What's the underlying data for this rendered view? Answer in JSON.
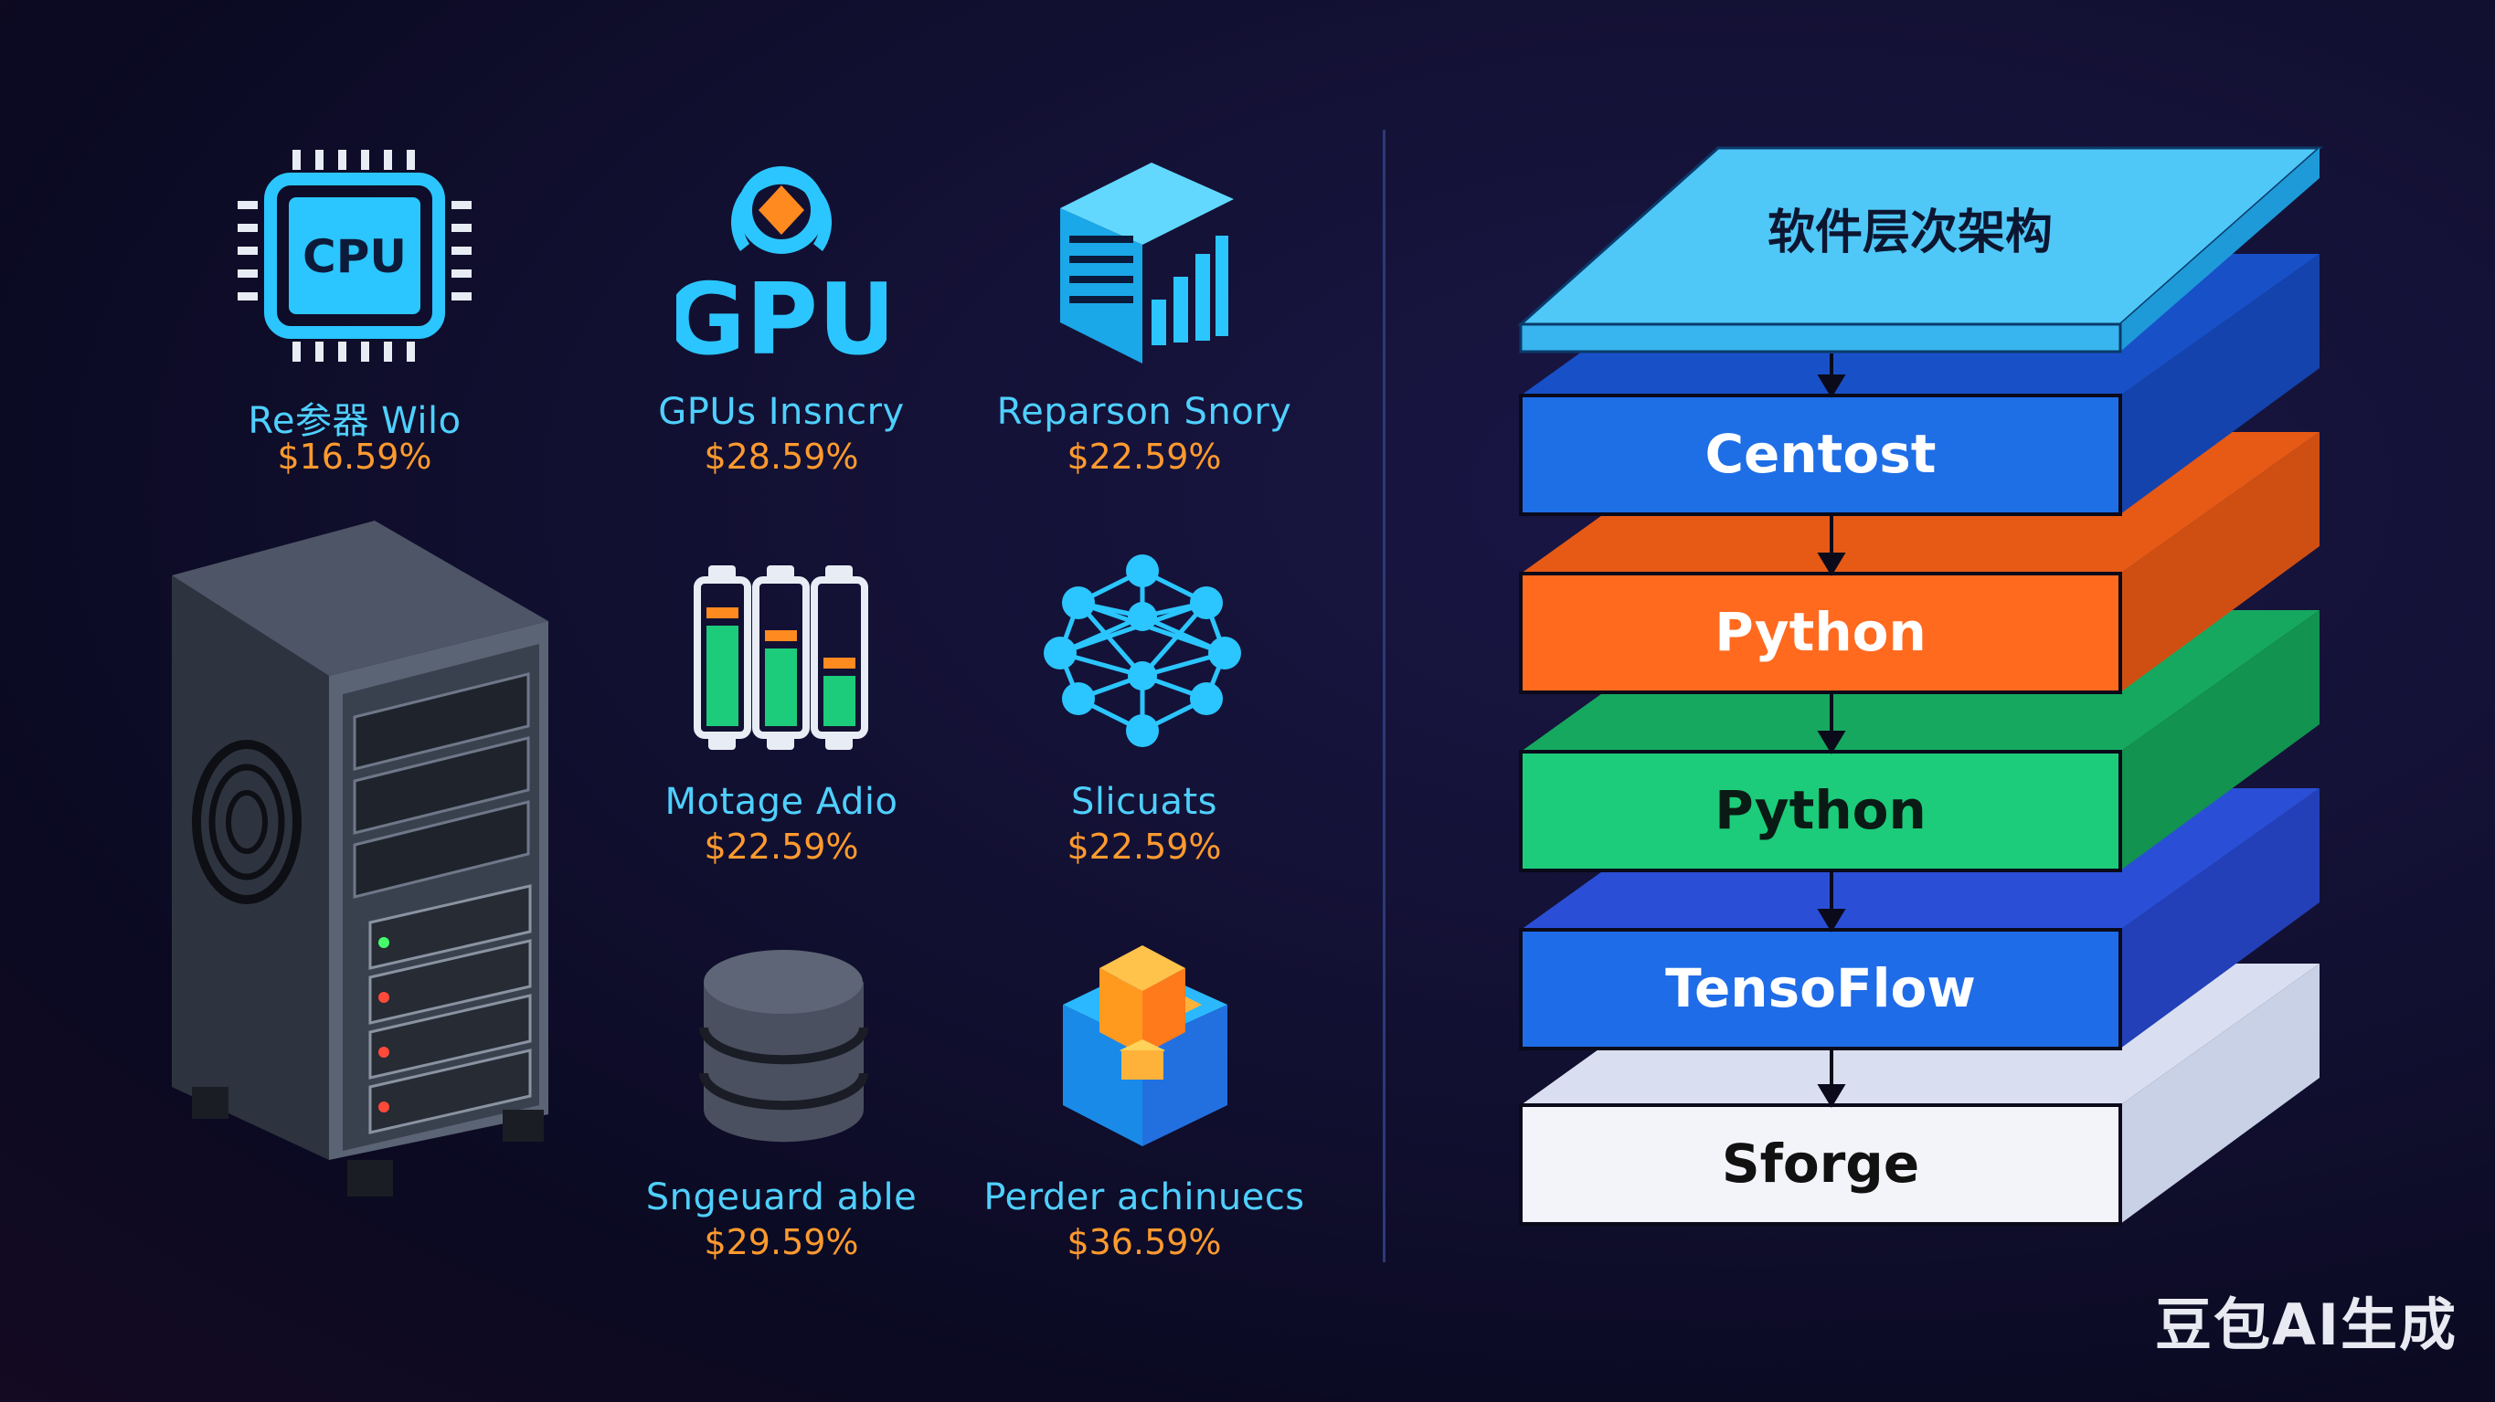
{
  "components": [
    {
      "name": "Re参器 Wilo",
      "price": "$16.59%",
      "icon": "cpu-icon",
      "icon_text": "CPU"
    },
    {
      "name": "GPUs Insncry",
      "price": "$28.59%",
      "icon": "gpu-icon",
      "icon_text": "GPU"
    },
    {
      "name": "Reparson Snory",
      "price": "$22.59%",
      "icon": "storage-chart-icon"
    },
    {
      "name": "Motage Adio",
      "price": "$22.59%",
      "icon": "memory-bars-icon"
    },
    {
      "name": "Slicuats",
      "price": "$22.59%",
      "icon": "neural-network-icon"
    },
    {
      "name": "Sngeuard able",
      "price": "$29.59%",
      "icon": "database-icon"
    },
    {
      "name": "Perder achinuecs",
      "price": "$36.59%",
      "icon": "cube-icon"
    }
  ],
  "stack": {
    "title": "软件层次架构",
    "layers": [
      {
        "label": "Centost",
        "color": "#1e6ee6"
      },
      {
        "label": "Python",
        "color": "#ff6a1f"
      },
      {
        "label": "Python",
        "color": "#1ccc7a"
      },
      {
        "label": "TensoFlow",
        "color": "#1f6ce8"
      },
      {
        "label": "Sforge",
        "color": "#f2f4fa"
      }
    ]
  },
  "watermark": "豆包AI生成",
  "colors": {
    "cyan": "#2bc6ff",
    "orange": "#ff9a2e",
    "background": "#121031"
  }
}
